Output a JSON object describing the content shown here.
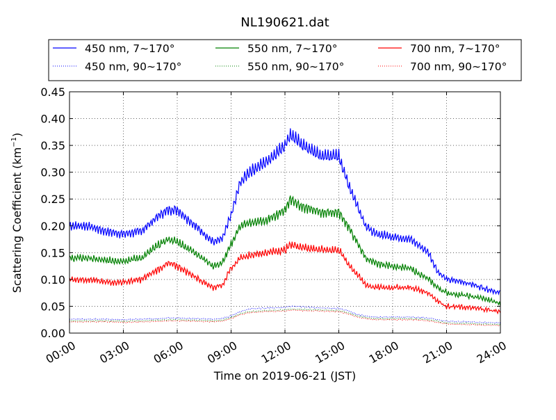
{
  "chart_data": {
    "type": "line",
    "title": "NL190621.dat",
    "xlabel": "Time on 2019-06-21 (JST)",
    "ylabel_main": "Scattering Coefficient (km",
    "ylabel_exp": "−1",
    "ylabel_close": ")",
    "xlim": [
      "00:00",
      "24:00"
    ],
    "ylim": [
      0.0,
      0.45
    ],
    "grid": true,
    "legend_placement": "top, above plot, 3 columns",
    "x_ticks": [
      "00:00",
      "03:00",
      "06:00",
      "09:00",
      "12:00",
      "15:00",
      "18:00",
      "21:00",
      "24:00"
    ],
    "y_ticks": [
      "0.00",
      "0.05",
      "0.10",
      "0.15",
      "0.20",
      "0.25",
      "0.30",
      "0.35",
      "0.40",
      "0.45"
    ],
    "x_hours": [
      0,
      1,
      2,
      3,
      4,
      5,
      5.5,
      6,
      7,
      8,
      8.5,
      9,
      9.5,
      10,
      11,
      12,
      12.3,
      13,
      14,
      15,
      15.5,
      16,
      16.5,
      17,
      18,
      19,
      20,
      20.5,
      21,
      22,
      23,
      24
    ],
    "series": [
      {
        "name": "450 nm, 7∼170°",
        "color": "#0000ff",
        "style": "solid",
        "values": [
          0.2,
          0.2,
          0.19,
          0.185,
          0.19,
          0.22,
          0.23,
          0.23,
          0.2,
          0.17,
          0.175,
          0.22,
          0.28,
          0.3,
          0.32,
          0.35,
          0.37,
          0.35,
          0.33,
          0.33,
          0.28,
          0.24,
          0.2,
          0.185,
          0.18,
          0.175,
          0.15,
          0.115,
          0.1,
          0.095,
          0.085,
          0.075
        ]
      },
      {
        "name": "550 nm, 7∼170°",
        "color": "#008000",
        "style": "solid",
        "values": [
          0.14,
          0.14,
          0.135,
          0.135,
          0.14,
          0.165,
          0.175,
          0.17,
          0.15,
          0.125,
          0.13,
          0.165,
          0.2,
          0.205,
          0.21,
          0.23,
          0.25,
          0.235,
          0.225,
          0.225,
          0.2,
          0.17,
          0.14,
          0.13,
          0.125,
          0.12,
          0.1,
          0.085,
          0.075,
          0.07,
          0.065,
          0.055
        ]
      },
      {
        "name": "700 nm, 7∼170°",
        "color": "#ff0000",
        "style": "solid",
        "values": [
          0.1,
          0.1,
          0.095,
          0.095,
          0.1,
          0.12,
          0.13,
          0.125,
          0.105,
          0.085,
          0.09,
          0.12,
          0.14,
          0.145,
          0.15,
          0.155,
          0.165,
          0.16,
          0.155,
          0.155,
          0.13,
          0.11,
          0.09,
          0.085,
          0.085,
          0.085,
          0.075,
          0.06,
          0.05,
          0.048,
          0.045,
          0.04
        ]
      },
      {
        "name": "450 nm, 90∼170°",
        "color": "#0000ff",
        "style": "dotted",
        "values": [
          0.026,
          0.026,
          0.026,
          0.025,
          0.026,
          0.027,
          0.028,
          0.028,
          0.027,
          0.026,
          0.027,
          0.032,
          0.04,
          0.045,
          0.047,
          0.048,
          0.05,
          0.049,
          0.047,
          0.046,
          0.042,
          0.035,
          0.032,
          0.03,
          0.03,
          0.03,
          0.028,
          0.025,
          0.022,
          0.021,
          0.02,
          0.019
        ]
      },
      {
        "name": "550 nm, 90∼170°",
        "color": "#008000",
        "style": "dotted",
        "values": [
          0.023,
          0.023,
          0.023,
          0.022,
          0.023,
          0.024,
          0.025,
          0.025,
          0.024,
          0.023,
          0.024,
          0.029,
          0.036,
          0.04,
          0.042,
          0.043,
          0.045,
          0.044,
          0.043,
          0.042,
          0.038,
          0.032,
          0.029,
          0.027,
          0.027,
          0.027,
          0.025,
          0.022,
          0.019,
          0.018,
          0.017,
          0.016
        ]
      },
      {
        "name": "700 nm, 90∼170°",
        "color": "#ff0000",
        "style": "dotted",
        "values": [
          0.021,
          0.021,
          0.021,
          0.02,
          0.021,
          0.022,
          0.023,
          0.023,
          0.022,
          0.021,
          0.022,
          0.027,
          0.034,
          0.038,
          0.04,
          0.041,
          0.043,
          0.042,
          0.041,
          0.04,
          0.036,
          0.03,
          0.027,
          0.025,
          0.025,
          0.025,
          0.023,
          0.02,
          0.017,
          0.016,
          0.015,
          0.014
        ]
      }
    ]
  }
}
